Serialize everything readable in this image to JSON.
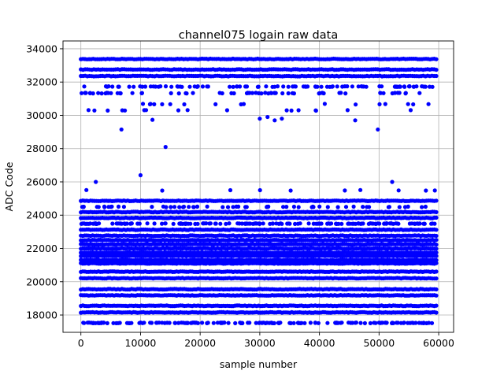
{
  "chart_data": {
    "type": "scatter",
    "title": "channel075 logain raw data",
    "xlabel": "sample number",
    "ylabel": "ADC Code",
    "xlim": [
      -3000,
      62500
    ],
    "ylim": [
      16960,
      34470
    ],
    "grid": true,
    "marker_color": "#0000ff",
    "x_ticks": [
      "0",
      "10000",
      "20000",
      "30000",
      "40000",
      "50000",
      "60000"
    ],
    "y_ticks": [
      "18000",
      "20000",
      "22000",
      "24000",
      "26000",
      "28000",
      "30000",
      "32000",
      "34000"
    ],
    "x_range_of_samples": [
      0,
      59600
    ],
    "levels": [
      {
        "adc": 33385,
        "density": 0.95
      },
      {
        "adc": 32755,
        "density": 0.9
      },
      {
        "adc": 32360,
        "density": 0.9
      },
      {
        "adc": 31728,
        "density": 0.5
      },
      {
        "adc": 31333,
        "density": 0.35
      },
      {
        "adc": 30670,
        "density": 0.08
      },
      {
        "adc": 30300,
        "density": 0.08
      },
      {
        "adc": 25494,
        "density": 0.04
      },
      {
        "adc": 24864,
        "density": 1.0
      },
      {
        "adc": 24500,
        "density": 0.3
      },
      {
        "adc": 24187,
        "density": 1.0
      },
      {
        "adc": 23836,
        "density": 1.0
      },
      {
        "adc": 23491,
        "density": 0.85
      },
      {
        "adc": 23127,
        "density": 1.0
      },
      {
        "adc": 22767,
        "density": 1.0
      },
      {
        "adc": 22500,
        "density": 1.0
      },
      {
        "adc": 22250,
        "density": 1.0
      },
      {
        "adc": 22000,
        "density": 1.0
      },
      {
        "adc": 21750,
        "density": 1.0
      },
      {
        "adc": 21550,
        "density": 1.0
      },
      {
        "adc": 21300,
        "density": 1.0
      },
      {
        "adc": 21100,
        "density": 1.0
      },
      {
        "adc": 20604,
        "density": 1.0
      },
      {
        "adc": 20210,
        "density": 1.0
      },
      {
        "adc": 19548,
        "density": 1.0
      },
      {
        "adc": 19183,
        "density": 1.0
      },
      {
        "adc": 18554,
        "density": 1.0
      },
      {
        "adc": 18156,
        "density": 1.0
      },
      {
        "adc": 17527,
        "density": 0.85
      }
    ],
    "outliers": [
      [
        2500,
        26000
      ],
      [
        10000,
        26400
      ],
      [
        12000,
        29730
      ],
      [
        6800,
        29150
      ],
      [
        14200,
        28100
      ],
      [
        33700,
        29800
      ],
      [
        30000,
        29800
      ],
      [
        32500,
        29700
      ],
      [
        46000,
        29700
      ],
      [
        49800,
        29150
      ],
      [
        52200,
        26000
      ],
      [
        31300,
        29900
      ]
    ]
  }
}
